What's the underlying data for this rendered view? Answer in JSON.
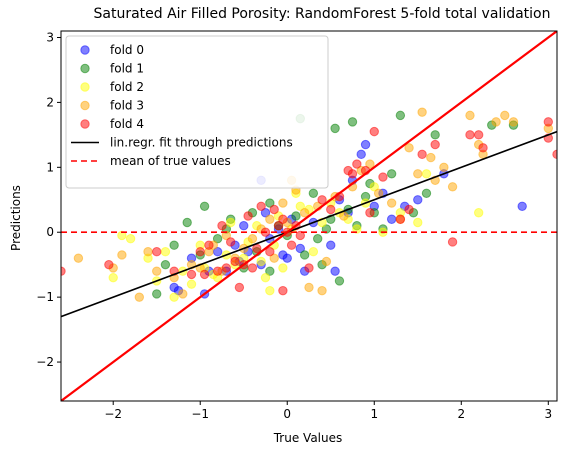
{
  "chart_data": {
    "type": "scatter",
    "title": "Saturated Air Filled Porosity: RandomForest 5-fold total validation",
    "xlabel": "True Values",
    "ylabel": "Predictions",
    "xlim": [
      -2.6,
      3.1
    ],
    "ylim": [
      -2.6,
      3.1
    ],
    "xticks": [
      -2,
      -1,
      0,
      1,
      2,
      3
    ],
    "yticks": [
      -2,
      -1,
      0,
      1,
      2,
      3
    ],
    "grid": false,
    "legend_position": "top-left",
    "series": [
      {
        "name": "fold 0",
        "color": "#0000ff",
        "points": [
          [
            -1.3,
            -0.85
          ],
          [
            -1.25,
            -0.9
          ],
          [
            -1.1,
            -0.4
          ],
          [
            -0.95,
            -0.95
          ],
          [
            -0.9,
            -0.6
          ],
          [
            -0.8,
            -0.3
          ],
          [
            -0.7,
            -0.6
          ],
          [
            -0.6,
            -0.2
          ],
          [
            -0.55,
            -0.45
          ],
          [
            -0.5,
            0.1
          ],
          [
            -0.45,
            -0.3
          ],
          [
            -0.3,
            -0.5
          ],
          [
            -0.25,
            0.3
          ],
          [
            -0.2,
            -0.1
          ],
          [
            -0.1,
            0.05
          ],
          [
            -0.05,
            -0.35
          ],
          [
            0.0,
            -0.4
          ],
          [
            0.05,
            0.2
          ],
          [
            0.15,
            -0.25
          ],
          [
            0.2,
            -0.6
          ],
          [
            0.3,
            0.15
          ],
          [
            0.5,
            -0.2
          ],
          [
            0.55,
            -0.6
          ],
          [
            0.6,
            0.5
          ],
          [
            0.7,
            0.3
          ],
          [
            0.75,
            0.8
          ],
          [
            0.85,
            1.2
          ],
          [
            0.9,
            1.35
          ],
          [
            1.0,
            0.4
          ],
          [
            1.1,
            0.6
          ],
          [
            1.2,
            0.2
          ],
          [
            1.35,
            0.4
          ],
          [
            1.5,
            0.5
          ],
          [
            1.8,
            0.9
          ],
          [
            2.7,
            0.4
          ],
          [
            -0.3,
            0.8
          ]
        ]
      },
      {
        "name": "fold 1",
        "color": "#008000",
        "points": [
          [
            -1.5,
            -0.95
          ],
          [
            -1.4,
            -0.5
          ],
          [
            -1.3,
            -0.2
          ],
          [
            -1.15,
            0.15
          ],
          [
            -1.0,
            -0.35
          ],
          [
            -0.95,
            0.4
          ],
          [
            -0.8,
            -0.1
          ],
          [
            -0.7,
            0.05
          ],
          [
            -0.65,
            0.2
          ],
          [
            -0.5,
            -0.55
          ],
          [
            -0.4,
            0.3
          ],
          [
            -0.35,
            -0.3
          ],
          [
            -0.2,
            0.45
          ],
          [
            -0.1,
            0.1
          ],
          [
            0.0,
            -0.05
          ],
          [
            0.1,
            0.25
          ],
          [
            0.2,
            -0.35
          ],
          [
            0.3,
            0.6
          ],
          [
            0.35,
            -0.1
          ],
          [
            0.4,
            -0.5
          ],
          [
            0.45,
            0.05
          ],
          [
            0.5,
            0.2
          ],
          [
            0.55,
            1.6
          ],
          [
            0.6,
            -0.75
          ],
          [
            0.7,
            0.35
          ],
          [
            0.75,
            1.7
          ],
          [
            0.8,
            0.1
          ],
          [
            0.9,
            0.55
          ],
          [
            0.95,
            0.75
          ],
          [
            1.0,
            0.3
          ],
          [
            1.1,
            0.05
          ],
          [
            1.2,
            0.9
          ],
          [
            1.3,
            1.8
          ],
          [
            1.45,
            0.3
          ],
          [
            1.6,
            0.6
          ],
          [
            1.7,
            1.5
          ],
          [
            2.35,
            1.65
          ],
          [
            2.6,
            1.65
          ],
          [
            -0.2,
            -0.6
          ],
          [
            0.15,
            1.75
          ]
        ]
      },
      {
        "name": "fold 2",
        "color": "#ffff00",
        "points": [
          [
            -2.0,
            -0.7
          ],
          [
            -1.8,
            -0.1
          ],
          [
            -1.6,
            -0.4
          ],
          [
            -1.5,
            -0.75
          ],
          [
            -1.4,
            -0.3
          ],
          [
            -1.3,
            -1.0
          ],
          [
            -1.2,
            -0.6
          ],
          [
            -1.1,
            -0.8
          ],
          [
            -1.0,
            -0.2
          ],
          [
            -0.95,
            -0.55
          ],
          [
            -0.85,
            -0.65
          ],
          [
            -0.8,
            -0.7
          ],
          [
            -0.7,
            -0.35
          ],
          [
            -0.65,
            0.15
          ],
          [
            -0.6,
            -0.5
          ],
          [
            -0.5,
            -0.4
          ],
          [
            -0.45,
            -0.15
          ],
          [
            -0.35,
            0.1
          ],
          [
            -0.3,
            -0.45
          ],
          [
            -0.25,
            -0.7
          ],
          [
            -0.15,
            -0.2
          ],
          [
            -0.1,
            0.25
          ],
          [
            -0.05,
            -0.55
          ],
          [
            0.05,
            0.05
          ],
          [
            0.1,
            0.6
          ],
          [
            0.15,
            0.4
          ],
          [
            0.25,
            0.35
          ],
          [
            0.3,
            -0.3
          ],
          [
            0.4,
            0.15
          ],
          [
            0.5,
            0.45
          ],
          [
            0.6,
            0.3
          ],
          [
            0.7,
            0.2
          ],
          [
            0.8,
            0.05
          ],
          [
            0.9,
            0.45
          ],
          [
            1.0,
            0.7
          ],
          [
            1.1,
            0.0
          ],
          [
            1.3,
            0.3
          ],
          [
            1.5,
            0.15
          ],
          [
            1.6,
            0.9
          ],
          [
            2.2,
            0.3
          ],
          [
            -1.9,
            -0.05
          ],
          [
            -0.2,
            -0.9
          ]
        ]
      },
      {
        "name": "fold 3",
        "color": "#ffa500",
        "points": [
          [
            -2.4,
            -0.4
          ],
          [
            -2.0,
            -0.55
          ],
          [
            -1.9,
            -0.35
          ],
          [
            -1.7,
            -1.0
          ],
          [
            -1.6,
            -0.3
          ],
          [
            -1.5,
            -0.6
          ],
          [
            -1.3,
            -0.7
          ],
          [
            -1.2,
            -0.95
          ],
          [
            -1.1,
            -0.5
          ],
          [
            -1.0,
            -0.55
          ],
          [
            -0.9,
            -0.3
          ],
          [
            -0.85,
            -0.2
          ],
          [
            -0.75,
            -0.6
          ],
          [
            -0.7,
            -0.05
          ],
          [
            -0.6,
            -0.4
          ],
          [
            -0.5,
            -0.25
          ],
          [
            -0.4,
            -0.1
          ],
          [
            -0.3,
            0.05
          ],
          [
            -0.2,
            0.2
          ],
          [
            -0.15,
            -0.4
          ],
          [
            -0.05,
            0.45
          ],
          [
            0.0,
            0.15
          ],
          [
            0.1,
            0.65
          ],
          [
            0.2,
            0.3
          ],
          [
            0.25,
            -0.85
          ],
          [
            0.35,
            0.4
          ],
          [
            0.4,
            -0.9
          ],
          [
            0.45,
            -0.45
          ],
          [
            0.55,
            0.55
          ],
          [
            0.65,
            0.25
          ],
          [
            0.75,
            0.7
          ],
          [
            0.85,
            0.95
          ],
          [
            0.95,
            1.05
          ],
          [
            1.05,
            0.6
          ],
          [
            1.2,
            0.45
          ],
          [
            1.3,
            0.2
          ],
          [
            1.4,
            1.3
          ],
          [
            1.5,
            0.9
          ],
          [
            1.55,
            1.85
          ],
          [
            1.65,
            1.15
          ],
          [
            1.7,
            0.8
          ],
          [
            1.8,
            1.0
          ],
          [
            1.9,
            0.7
          ],
          [
            2.1,
            1.8
          ],
          [
            2.2,
            1.35
          ],
          [
            2.25,
            1.2
          ],
          [
            2.4,
            1.7
          ],
          [
            2.5,
            1.8
          ],
          [
            2.6,
            1.7
          ],
          [
            3.0,
            1.6
          ],
          [
            0.05,
            0.8
          ]
        ]
      },
      {
        "name": "fold 4",
        "color": "#ff0000",
        "points": [
          [
            -2.6,
            -0.6
          ],
          [
            -2.05,
            -0.5
          ],
          [
            -1.5,
            -0.3
          ],
          [
            -1.3,
            -0.6
          ],
          [
            -1.1,
            -0.65
          ],
          [
            -1.0,
            -0.3
          ],
          [
            -0.95,
            -0.65
          ],
          [
            -0.9,
            -0.2
          ],
          [
            -0.8,
            -0.6
          ],
          [
            -0.75,
            0.1
          ],
          [
            -0.7,
            -0.55
          ],
          [
            -0.65,
            -0.15
          ],
          [
            -0.6,
            -0.45
          ],
          [
            -0.55,
            -0.85
          ],
          [
            -0.5,
            -0.5
          ],
          [
            -0.45,
            0.25
          ],
          [
            -0.4,
            -0.55
          ],
          [
            -0.35,
            -0.25
          ],
          [
            -0.3,
            0.4
          ],
          [
            -0.25,
            0.0
          ],
          [
            -0.2,
            -0.3
          ],
          [
            -0.15,
            0.35
          ],
          [
            -0.1,
            0.1
          ],
          [
            -0.05,
            0.2
          ],
          [
            0.0,
            0.0
          ],
          [
            0.05,
            -0.2
          ],
          [
            0.1,
            0.1
          ],
          [
            0.15,
            -0.05
          ],
          [
            0.25,
            -0.55
          ],
          [
            0.4,
            0.5
          ],
          [
            0.5,
            0.35
          ],
          [
            0.6,
            0.55
          ],
          [
            0.7,
            0.95
          ],
          [
            0.75,
            0.9
          ],
          [
            0.8,
            1.05
          ],
          [
            0.9,
            0.95
          ],
          [
            1.0,
            1.55
          ],
          [
            1.1,
            0.85
          ],
          [
            1.3,
            0.2
          ],
          [
            1.4,
            0.35
          ],
          [
            1.55,
            1.2
          ],
          [
            1.7,
            1.35
          ],
          [
            1.9,
            -0.15
          ],
          [
            2.1,
            1.5
          ],
          [
            2.2,
            1.5
          ],
          [
            2.25,
            1.3
          ],
          [
            3.0,
            1.45
          ],
          [
            3.0,
            1.7
          ],
          [
            3.1,
            1.2
          ],
          [
            0.95,
            0.3
          ],
          [
            -0.05,
            -0.9
          ]
        ]
      }
    ],
    "fit_line": {
      "name": "lin.regr. fit through predictions",
      "color": "#000000",
      "slope": 0.5,
      "intercept": 0.0
    },
    "identity_line": {
      "color": "#ff0000",
      "slope": 1,
      "intercept": 0
    },
    "mean_line": {
      "name": "mean of true values",
      "color": "#ff0000",
      "y": 0
    }
  }
}
